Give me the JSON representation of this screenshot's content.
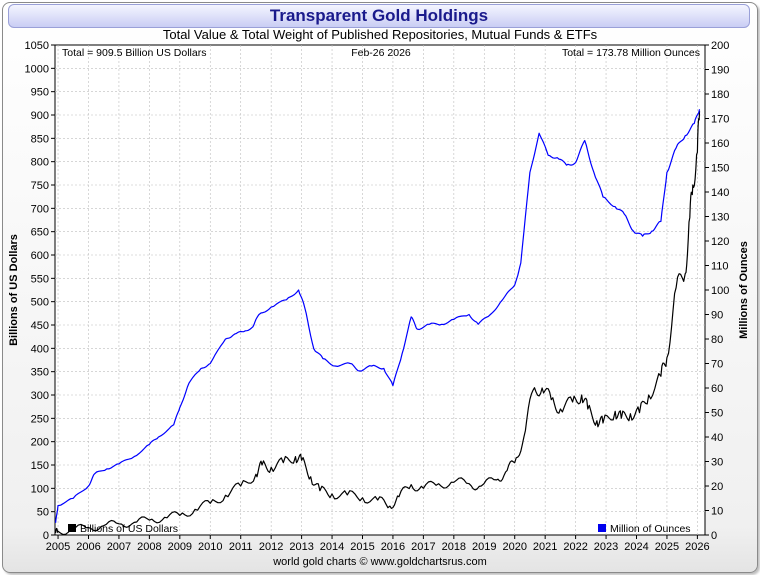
{
  "chart_data": {
    "type": "line",
    "title": "Transparent Gold Holdings",
    "subtitle": "Total Value & Total Weight of Published Repositories, Mutual Funds & ETFs",
    "date_label": "Feb-26  2026",
    "total_value_note": "Total = 909.5 Billion US Dollars",
    "total_weight_note": "Total = 173.78 Million Ounces",
    "ylabel_left": "Billions of US Dollars",
    "ylabel_right": "Millions of Ounces",
    "footer": "world gold charts © www.goldchartsrus.com",
    "ylim_left": [
      0,
      1050
    ],
    "ylim_right": [
      0,
      200
    ],
    "xlim": [
      2004.9,
      2026.25
    ],
    "left_ticks": [
      0,
      50,
      100,
      150,
      200,
      250,
      300,
      350,
      400,
      450,
      500,
      550,
      600,
      650,
      700,
      750,
      800,
      850,
      900,
      950,
      1000,
      1050
    ],
    "right_ticks": [
      0,
      10,
      20,
      30,
      40,
      50,
      60,
      70,
      80,
      90,
      100,
      110,
      120,
      130,
      140,
      150,
      160,
      170,
      180,
      190,
      200
    ],
    "x_ticks": [
      "2005",
      "2006",
      "2007",
      "2008",
      "2009",
      "2010",
      "2011",
      "2012",
      "2013",
      "2014",
      "2015",
      "2016",
      "2017",
      "2018",
      "2019",
      "2020",
      "2021",
      "2022",
      "2023",
      "2024",
      "2025",
      "2026"
    ],
    "grid": true,
    "series": [
      {
        "name": "Billions of US Dollars",
        "axis": "left",
        "color": "#000000",
        "points": [
          [
            2004.92,
            4
          ],
          [
            2005.0,
            8
          ],
          [
            2005.5,
            12
          ],
          [
            2006.0,
            16
          ],
          [
            2006.5,
            20
          ],
          [
            2007.0,
            24
          ],
          [
            2007.5,
            27
          ],
          [
            2008.0,
            32
          ],
          [
            2008.5,
            38
          ],
          [
            2009.0,
            42
          ],
          [
            2009.5,
            55
          ],
          [
            2010.0,
            68
          ],
          [
            2010.5,
            85
          ],
          [
            2011.0,
            105
          ],
          [
            2011.5,
            130
          ],
          [
            2011.7,
            150
          ],
          [
            2012.0,
            145
          ],
          [
            2012.4,
            155
          ],
          [
            2012.8,
            168
          ],
          [
            2013.0,
            160
          ],
          [
            2013.3,
            125
          ],
          [
            2013.6,
            95
          ],
          [
            2014.0,
            88
          ],
          [
            2014.5,
            86
          ],
          [
            2015.0,
            80
          ],
          [
            2015.5,
            75
          ],
          [
            2015.9,
            62
          ],
          [
            2016.2,
            82
          ],
          [
            2016.6,
            108
          ],
          [
            2017.0,
            100
          ],
          [
            2017.5,
            110
          ],
          [
            2018.0,
            113
          ],
          [
            2018.5,
            110
          ],
          [
            2018.9,
            105
          ],
          [
            2019.4,
            118
          ],
          [
            2019.7,
            135
          ],
          [
            2020.0,
            155
          ],
          [
            2020.3,
            210
          ],
          [
            2020.6,
            310
          ],
          [
            2020.9,
            315
          ],
          [
            2021.2,
            290
          ],
          [
            2021.5,
            270
          ],
          [
            2021.9,
            285
          ],
          [
            2022.2,
            300
          ],
          [
            2022.4,
            270
          ],
          [
            2022.7,
            245
          ],
          [
            2022.9,
            240
          ],
          [
            2023.3,
            265
          ],
          [
            2023.5,
            250
          ],
          [
            2023.8,
            260
          ],
          [
            2024.1,
            262
          ],
          [
            2024.4,
            300
          ],
          [
            2024.8,
            340
          ],
          [
            2025.0,
            380
          ],
          [
            2025.3,
            530
          ],
          [
            2025.6,
            560
          ],
          [
            2025.75,
            680
          ],
          [
            2025.85,
            750
          ],
          [
            2026.0,
            820
          ],
          [
            2026.07,
            909
          ]
        ]
      },
      {
        "name": "Million of Ounces",
        "axis": "right",
        "color": "#0000ff",
        "points": [
          [
            2004.92,
            5
          ],
          [
            2005.0,
            12
          ],
          [
            2005.5,
            15
          ],
          [
            2006.0,
            20
          ],
          [
            2006.2,
            25
          ],
          [
            2006.6,
            27
          ],
          [
            2007.0,
            29
          ],
          [
            2007.5,
            32
          ],
          [
            2008.0,
            37
          ],
          [
            2008.3,
            40
          ],
          [
            2008.8,
            45
          ],
          [
            2009.0,
            52
          ],
          [
            2009.3,
            62
          ],
          [
            2009.7,
            68
          ],
          [
            2010.0,
            70
          ],
          [
            2010.5,
            80
          ],
          [
            2010.8,
            82
          ],
          [
            2011.1,
            83
          ],
          [
            2011.4,
            85
          ],
          [
            2011.6,
            90
          ],
          [
            2012.0,
            93
          ],
          [
            2012.5,
            96
          ],
          [
            2012.9,
            100
          ],
          [
            2013.1,
            93
          ],
          [
            2013.4,
            76
          ],
          [
            2013.7,
            72
          ],
          [
            2014.1,
            69
          ],
          [
            2014.6,
            70
          ],
          [
            2014.9,
            67
          ],
          [
            2015.3,
            69
          ],
          [
            2015.7,
            68
          ],
          [
            2016.0,
            61
          ],
          [
            2016.3,
            74
          ],
          [
            2016.6,
            89
          ],
          [
            2016.8,
            84
          ],
          [
            2017.2,
            86
          ],
          [
            2017.6,
            86
          ],
          [
            2018.0,
            88
          ],
          [
            2018.5,
            90
          ],
          [
            2018.8,
            86
          ],
          [
            2019.2,
            90
          ],
          [
            2019.6,
            96
          ],
          [
            2020.0,
            102
          ],
          [
            2020.2,
            111
          ],
          [
            2020.5,
            148
          ],
          [
            2020.8,
            164
          ],
          [
            2021.1,
            155
          ],
          [
            2021.4,
            154
          ],
          [
            2021.7,
            151
          ],
          [
            2022.0,
            152
          ],
          [
            2022.3,
            161
          ],
          [
            2022.6,
            148
          ],
          [
            2022.9,
            138
          ],
          [
            2023.3,
            134
          ],
          [
            2023.6,
            131
          ],
          [
            2023.9,
            124
          ],
          [
            2024.2,
            122
          ],
          [
            2024.5,
            124
          ],
          [
            2024.8,
            128
          ],
          [
            2025.0,
            148
          ],
          [
            2025.3,
            158
          ],
          [
            2025.6,
            163
          ],
          [
            2025.9,
            168
          ],
          [
            2026.07,
            173.78
          ]
        ]
      }
    ]
  }
}
